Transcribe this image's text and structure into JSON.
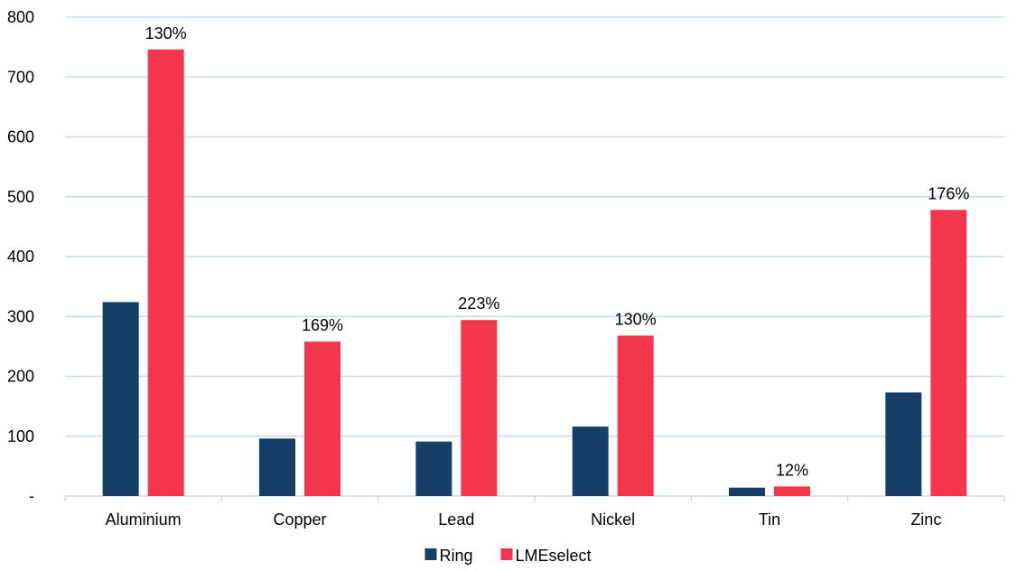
{
  "chart_data": {
    "type": "bar",
    "title": "",
    "xlabel": "",
    "ylabel": "",
    "ylim": [
      0,
      800
    ],
    "y_ticks": [
      {
        "value": 0,
        "label": "-"
      },
      {
        "value": 100,
        "label": "100"
      },
      {
        "value": 200,
        "label": "200"
      },
      {
        "value": 300,
        "label": "300"
      },
      {
        "value": 400,
        "label": "400"
      },
      {
        "value": 500,
        "label": "500"
      },
      {
        "value": 600,
        "label": "600"
      },
      {
        "value": 700,
        "label": "700"
      },
      {
        "value": 800,
        "label": "800"
      }
    ],
    "grid": true,
    "legend_position": "bottom",
    "categories": [
      "Aluminium",
      "Copper",
      "Lead",
      "Nickel",
      "Tin",
      "Zinc"
    ],
    "series": [
      {
        "name": "Ring",
        "color": "#153f66",
        "values": [
          324,
          96,
          91,
          116,
          14,
          173
        ]
      },
      {
        "name": "LMEselect",
        "color": "#f4364c",
        "values": [
          746,
          258,
          294,
          268,
          16,
          478
        ],
        "data_labels": [
          "130%",
          "169%",
          "223%",
          "130%",
          "12%",
          "176%"
        ]
      }
    ],
    "colors": {
      "grid": "#c9d9e8",
      "axis": "#c9d9e8"
    }
  }
}
